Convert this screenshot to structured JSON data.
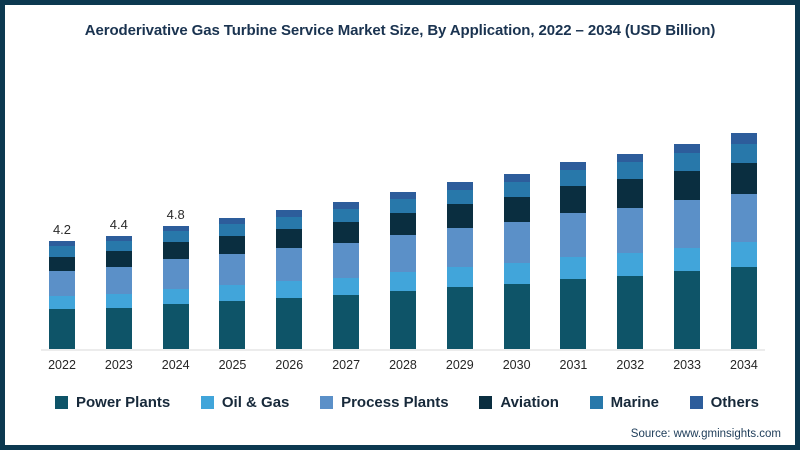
{
  "chart_data": {
    "type": "bar",
    "stacked": true,
    "title": "Aeroderivative Gas Turbine Service Market Size, By Application, 2022 – 2034 (USD Billion)",
    "xlabel": "",
    "ylabel": "USD Billion",
    "grid": false,
    "legend_position": "bottom",
    "ylim": [
      0,
      9
    ],
    "categories": [
      "2022",
      "2023",
      "2024",
      "2025",
      "2026",
      "2027",
      "2028",
      "2029",
      "2030",
      "2031",
      "2032",
      "2033",
      "2034"
    ],
    "totals": [
      4.2,
      4.4,
      4.8,
      5.1,
      5.4,
      5.7,
      6.1,
      6.5,
      6.8,
      7.3,
      7.6,
      8.0,
      8.4
    ],
    "bar_labels": [
      "4.2",
      "4.4",
      "4.8",
      "",
      "",
      "",
      "",
      "",
      "",
      "",
      "",
      "",
      ""
    ],
    "series": [
      {
        "name": "Power Plants",
        "color": "#0e5468",
        "values": [
          1.55,
          1.6,
          1.75,
          1.87,
          2.0,
          2.1,
          2.27,
          2.42,
          2.55,
          2.74,
          2.86,
          3.02,
          3.2
        ]
      },
      {
        "name": "Oil & Gas",
        "color": "#41a5da",
        "values": [
          0.5,
          0.55,
          0.6,
          0.62,
          0.65,
          0.68,
          0.72,
          0.77,
          0.8,
          0.85,
          0.88,
          0.92,
          0.95
        ]
      },
      {
        "name": "Process Plants",
        "color": "#5b90c8",
        "values": [
          1.0,
          1.05,
          1.15,
          1.2,
          1.27,
          1.35,
          1.43,
          1.52,
          1.58,
          1.69,
          1.76,
          1.85,
          1.9
        ]
      },
      {
        "name": "Aviation",
        "color": "#0a2e40",
        "values": [
          0.55,
          0.6,
          0.65,
          0.7,
          0.75,
          0.8,
          0.86,
          0.92,
          0.97,
          1.05,
          1.1,
          1.16,
          1.2
        ]
      },
      {
        "name": "Marine",
        "color": "#2878aa",
        "values": [
          0.4,
          0.4,
          0.43,
          0.46,
          0.48,
          0.51,
          0.54,
          0.57,
          0.6,
          0.64,
          0.66,
          0.7,
          0.72
        ]
      },
      {
        "name": "Others",
        "color": "#2d5d9b",
        "values": [
          0.2,
          0.2,
          0.22,
          0.25,
          0.25,
          0.26,
          0.28,
          0.3,
          0.3,
          0.33,
          0.34,
          0.35,
          0.43
        ]
      }
    ],
    "axis_line_color": "#ececec"
  },
  "footer": {
    "source": "Source: www.gminsights.com"
  },
  "colors": {
    "page_border": "#0c3950",
    "title_text": "#1a3350"
  }
}
